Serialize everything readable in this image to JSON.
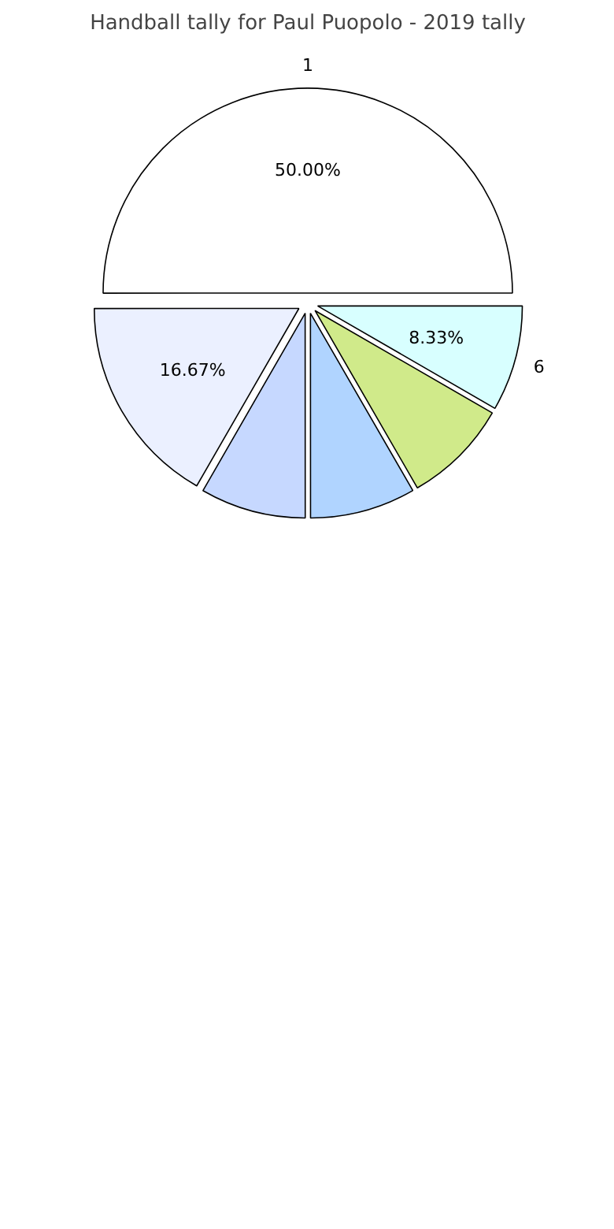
{
  "chart_data": {
    "type": "pie",
    "title": "Handball tally for Paul Puopolo - 2019 tally",
    "categories": [
      "1",
      null,
      null,
      null,
      null,
      "6"
    ],
    "values": [
      50,
      16.67,
      8.33,
      8.33,
      8.33,
      8.33
    ],
    "colors": [
      "#ffffff",
      "#ebf0ff",
      "#c6d8ff",
      "#b0d4ff",
      "#d0ea8a",
      "#d8ffff"
    ],
    "value_labels": [
      "50.00%",
      "16.67%",
      null,
      null,
      null,
      "8.33%"
    ]
  }
}
